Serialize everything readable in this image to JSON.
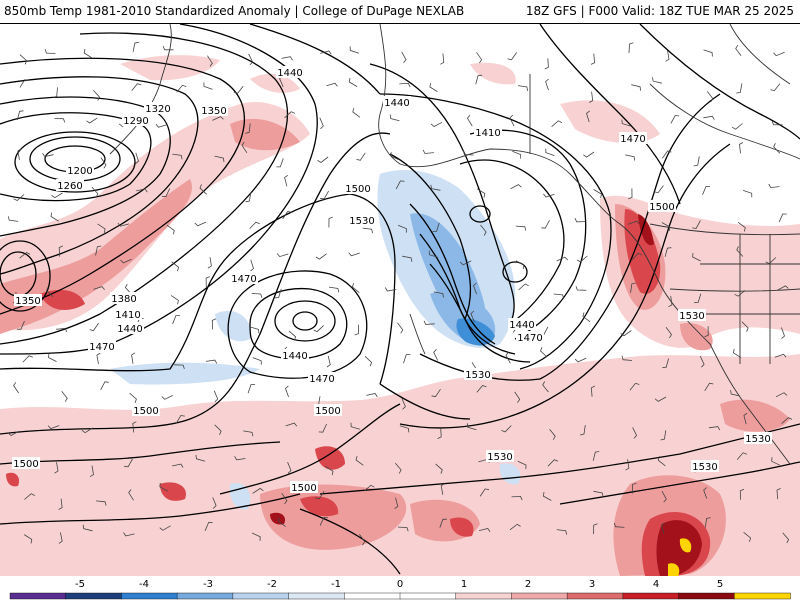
{
  "header": {
    "title_left": "850mb Temp 1981-2010 Standardized Anomaly | College of DuPage NEXLAB",
    "title_right": "18Z GFS | F000 Valid: 18Z TUE MAR 25 2025"
  },
  "contour_labels": [
    {
      "text": "1440"
    },
    {
      "text": "1440"
    },
    {
      "text": "1410"
    },
    {
      "text": "1470"
    },
    {
      "text": "1320"
    },
    {
      "text": "1350"
    },
    {
      "text": "1290"
    },
    {
      "text": "1200"
    },
    {
      "text": "1260"
    },
    {
      "text": "1500"
    },
    {
      "text": "1530"
    },
    {
      "text": "1500"
    },
    {
      "text": "1470"
    },
    {
      "text": "1350"
    },
    {
      "text": "1380"
    },
    {
      "text": "1410"
    },
    {
      "text": "1440"
    },
    {
      "text": "1470"
    },
    {
      "text": "1440"
    },
    {
      "text": "1470"
    },
    {
      "text": "1440"
    },
    {
      "text": "1470"
    },
    {
      "text": "1530"
    },
    {
      "text": "1530"
    },
    {
      "text": "1500"
    },
    {
      "text": "1500"
    },
    {
      "text": "1500"
    },
    {
      "text": "1530"
    },
    {
      "text": "1500"
    },
    {
      "text": "1530"
    },
    {
      "text": "1530"
    }
  ],
  "legend": {
    "ticks": [
      "-5",
      "-4",
      "-3",
      "-2",
      "-1",
      "0",
      "1",
      "2",
      "3",
      "4",
      "5"
    ],
    "colors": [
      "#5a2d91",
      "#1f3f7a",
      "#2f7fd0",
      "#76a9dc",
      "#b9d3ee",
      "#dbe7f5",
      "#ffffff",
      "#ffffff",
      "#f6d3d3",
      "#eeaaaa",
      "#dd6c6c",
      "#c81e27",
      "#8a0a0f",
      "#ffd400"
    ]
  },
  "colors": {
    "warm_light": "#f8d2d2",
    "warm_mid": "#ee9d9d",
    "warm_strong": "#d9474d",
    "warm_deep": "#a3111a",
    "warm_extreme": "#ffd400",
    "cold_light": "#cde0f4",
    "cold_mid": "#8bb8e6",
    "cold_strong": "#3f8ed8"
  }
}
